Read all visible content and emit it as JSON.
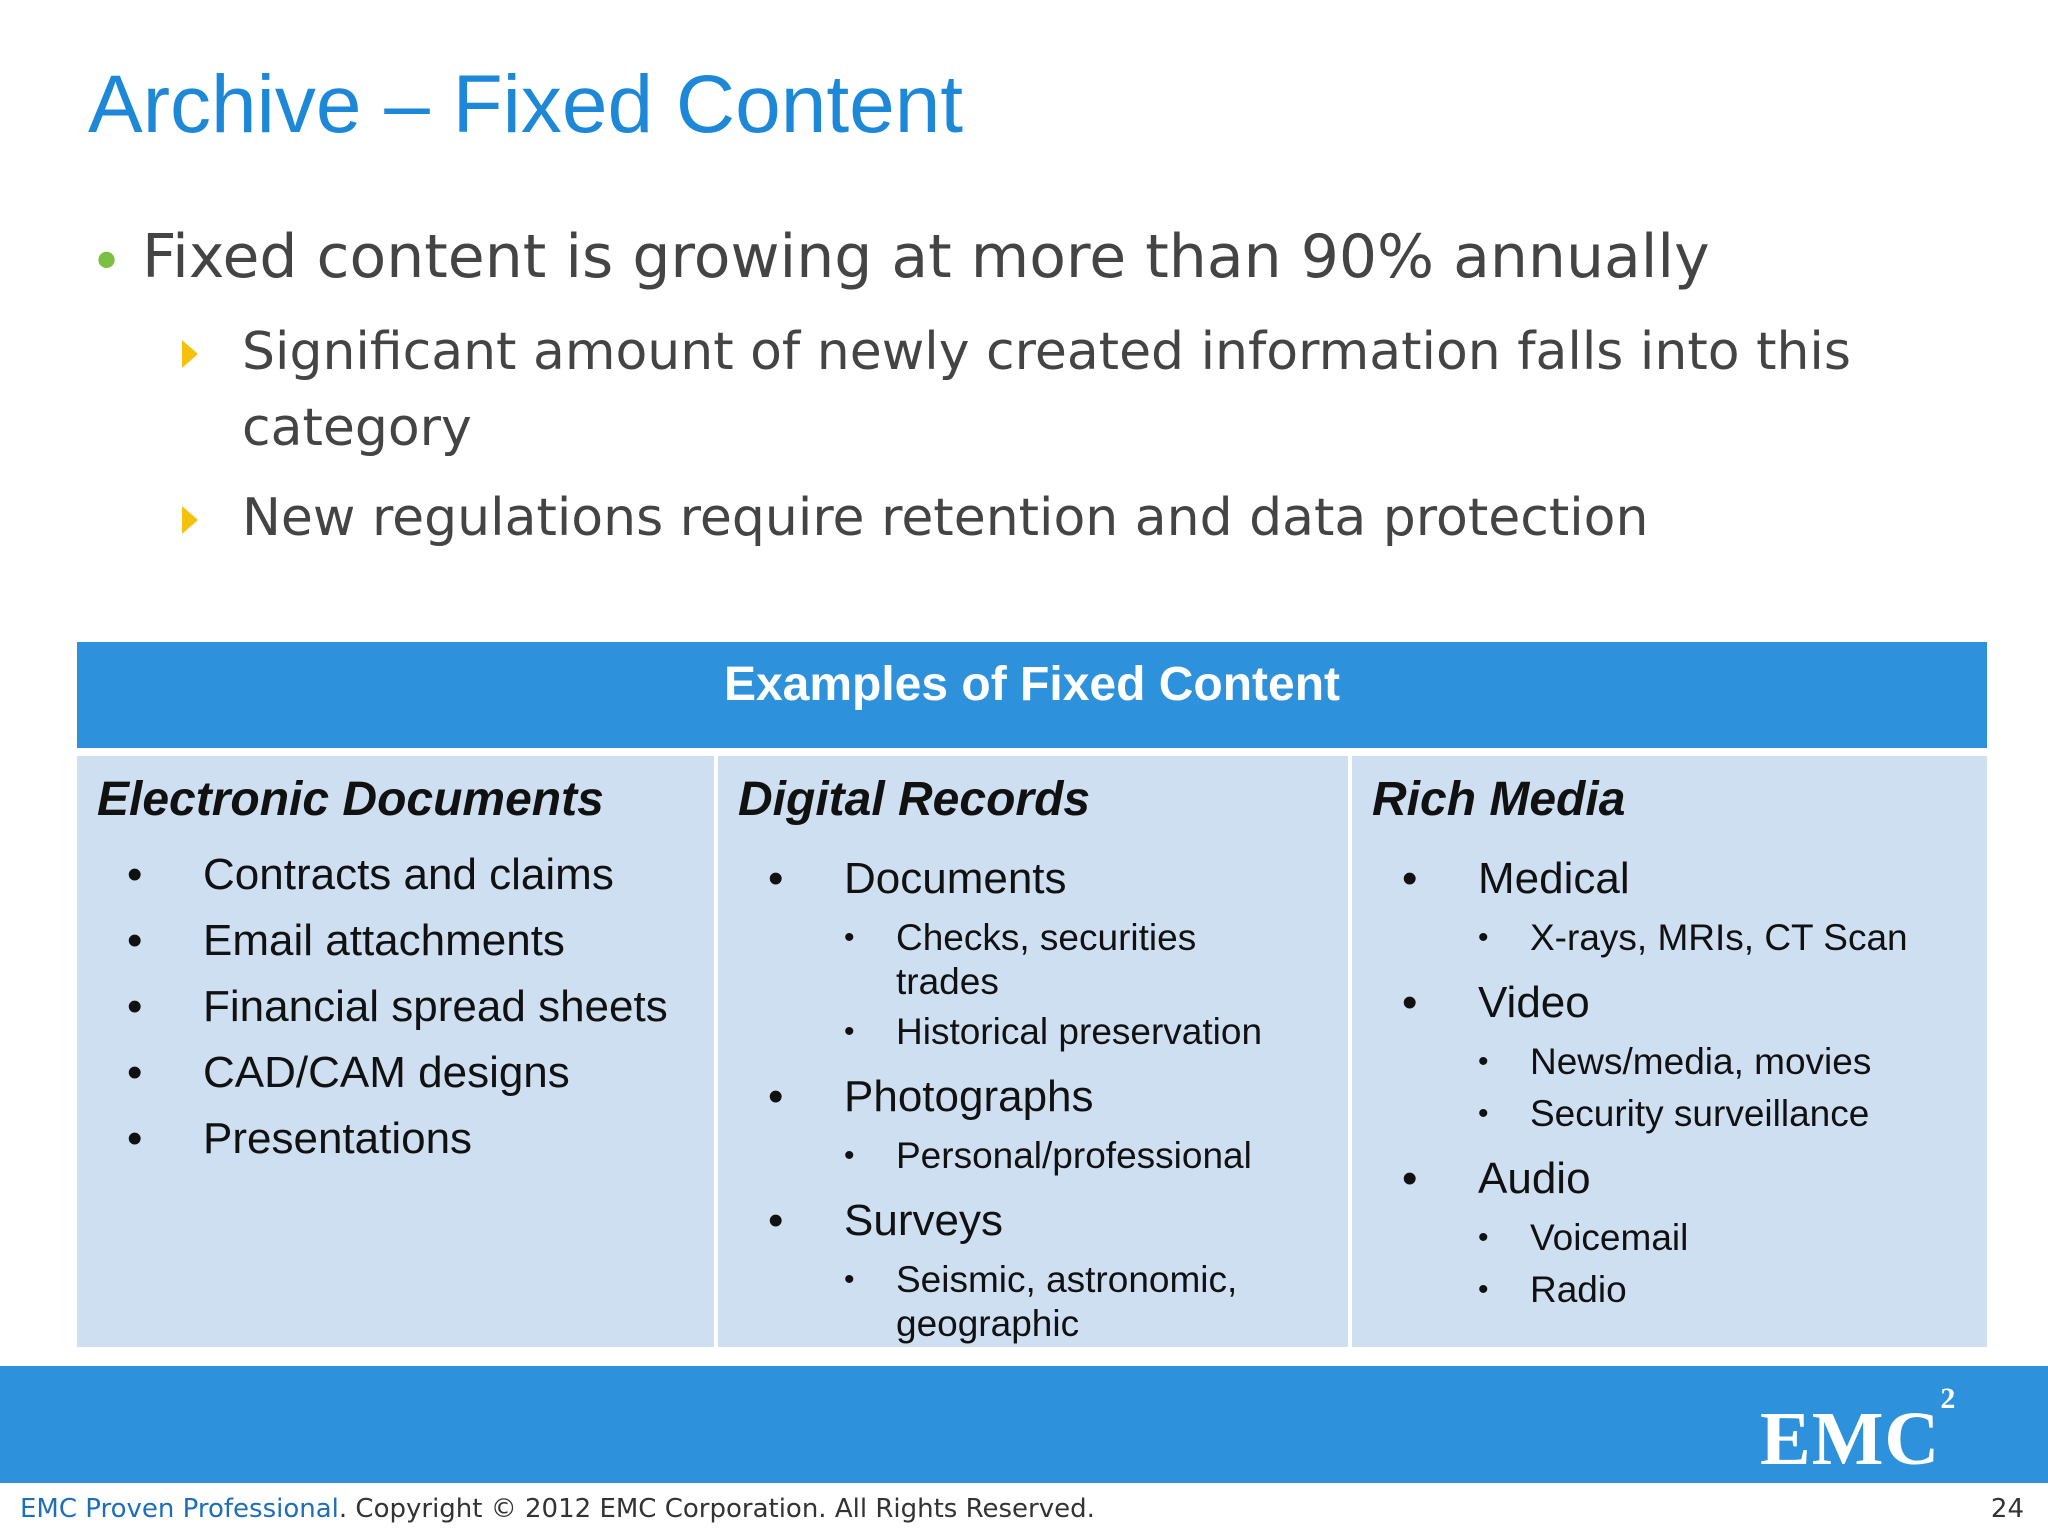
{
  "slide": {
    "title": "Archive – Fixed Content",
    "bullets": {
      "main": "Fixed content is growing at more than 90% annually",
      "subs": [
        "Significant amount of newly created information falls into this category",
        "New regulations require retention and data protection"
      ]
    }
  },
  "table": {
    "header": "Examples of Fixed Content",
    "columns": [
      {
        "heading": "Electronic Documents",
        "items": [
          "Contracts and claims",
          "Email attachments",
          "Financial spread sheets",
          "CAD/CAM designs",
          "Presentations"
        ]
      },
      {
        "heading": "Digital Records",
        "items": [
          {
            "label": "Documents",
            "subitems": [
              "Checks, securities trades",
              "Historical preservation"
            ]
          },
          {
            "label": "Photographs",
            "subitems": [
              "Personal/professional"
            ]
          },
          {
            "label": "Surveys",
            "subitems": [
              "Seismic, astronomic, geographic"
            ]
          }
        ]
      },
      {
        "heading": "Rich Media",
        "items": [
          {
            "label": "Medical",
            "subitems": [
              "X-rays, MRIs, CT Scan"
            ]
          },
          {
            "label": "Video",
            "subitems": [
              "News/media, movies",
              "Security surveillance"
            ]
          },
          {
            "label": "Audio",
            "subitems": [
              "Voicemail",
              "Radio"
            ]
          }
        ]
      }
    ]
  },
  "footer": {
    "brand": "EMC Proven Professional",
    "copyright": ". Copyright © 2012 EMC Corporation. All Rights Reserved.",
    "page_number": "24",
    "logo_text": "EMC",
    "logo_superscript": "2"
  },
  "colors": {
    "title": "#1e88d8",
    "band": "#2e91dc",
    "cell": "#cfdff2",
    "bullet_green": "#7bc043",
    "arrow_yellow": "#f4c20d"
  }
}
